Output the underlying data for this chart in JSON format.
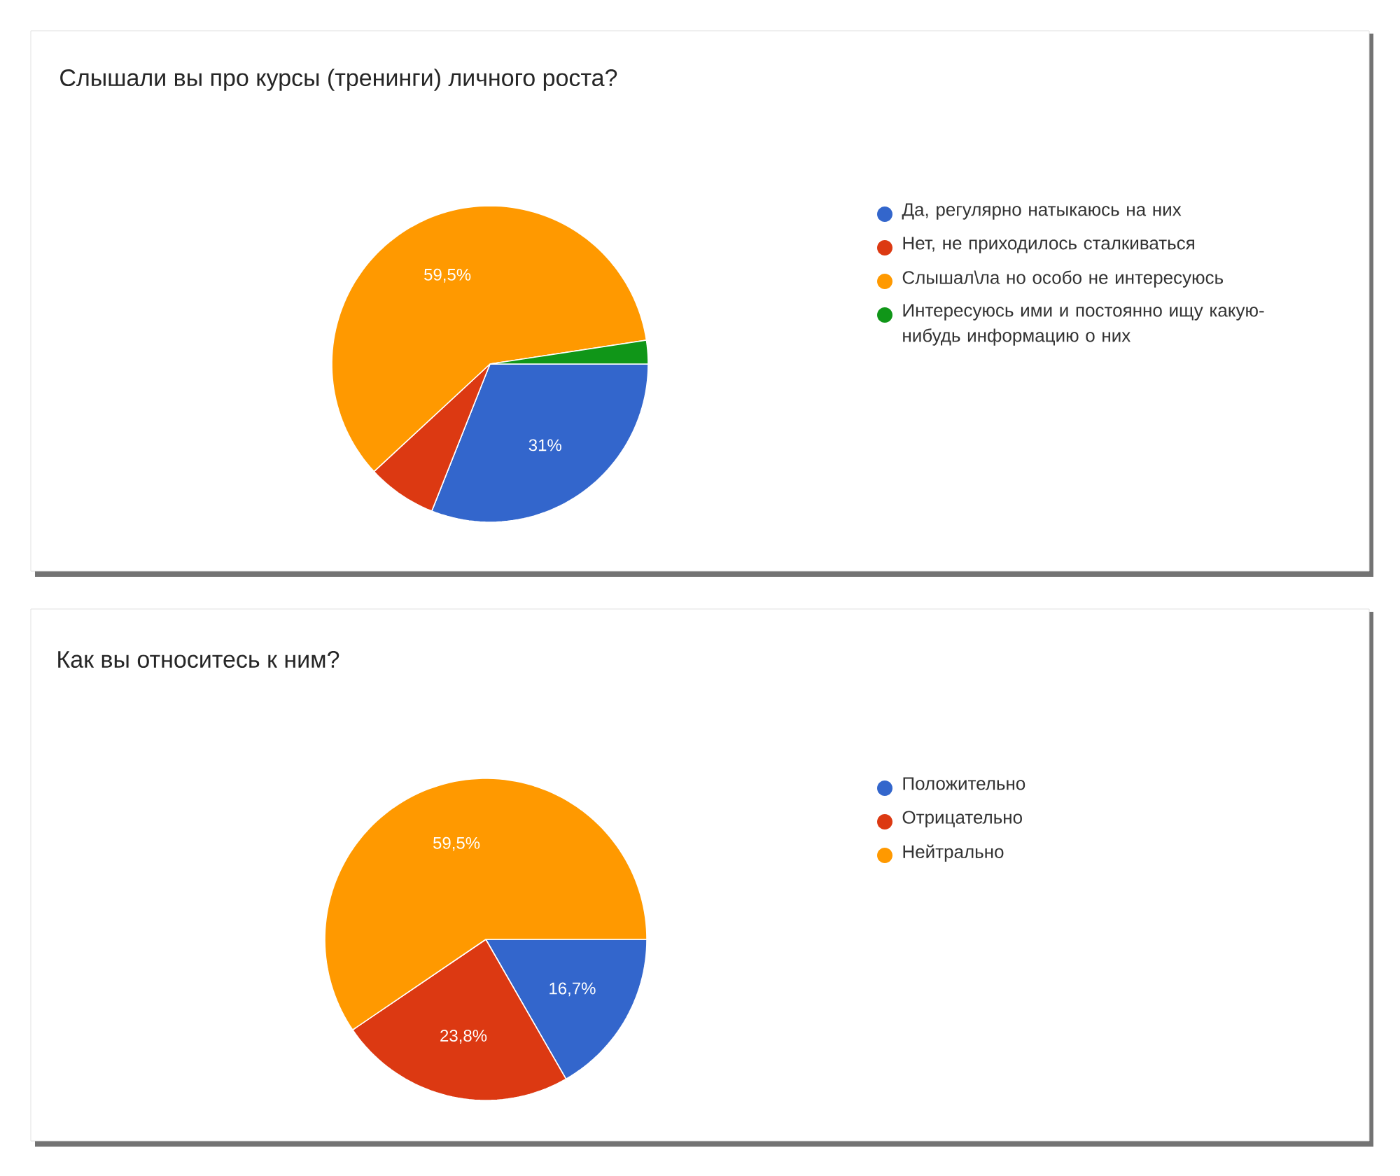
{
  "chart_data": [
    {
      "type": "pie",
      "title": "Слышали вы про курсы (тренинги) личного роста?",
      "categories": [
        "Да, регулярно натыкаюсь на них",
        "Нет, не приходилось сталкиваться",
        "Слышал\\ла но особо не интересуюсь",
        "Интересуюсь ими и постоянно ищу какую-нибудь информацию о них"
      ],
      "values": [
        31,
        7.1,
        59.5,
        2.4
      ],
      "colors": [
        "#3366cc",
        "#dc3912",
        "#ff9900",
        "#109618"
      ],
      "value_labels": [
        "31%",
        null,
        "59,5%",
        null
      ],
      "legend": "right"
    },
    {
      "type": "pie",
      "title": "Как вы относитесь к ним?",
      "categories": [
        "Положительно",
        "Отрицательно",
        "Нейтрально"
      ],
      "values": [
        16.7,
        23.8,
        59.5
      ],
      "colors": [
        "#3366cc",
        "#dc3912",
        "#ff9900"
      ],
      "value_labels": [
        "16,7%",
        "23,8%",
        "59,5%"
      ],
      "legend": "right"
    }
  ]
}
